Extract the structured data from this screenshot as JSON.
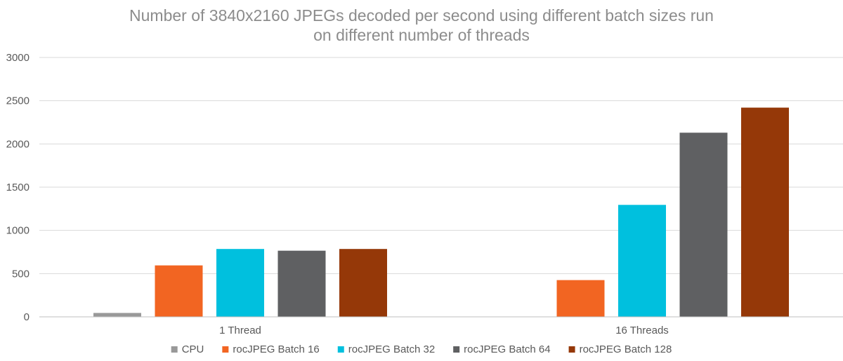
{
  "chart_data": {
    "type": "bar",
    "title_lines": [
      "Number of 3840x2160 JPEGs decoded per second using different batch sizes run",
      "on different number of threads"
    ],
    "xlabel": "",
    "ylabel": "",
    "categories": [
      "1 Thread",
      "16 Threads"
    ],
    "ylim": [
      0,
      3000
    ],
    "yticks": [
      0,
      500,
      1000,
      1500,
      2000,
      2500,
      3000
    ],
    "grid": true,
    "legend_position": "bottom",
    "series": [
      {
        "name": "CPU",
        "color": "#999999",
        "values": [
          45,
          null
        ]
      },
      {
        "name": "rocJPEG Batch 16",
        "color": "#f26522",
        "values": [
          595,
          425
        ]
      },
      {
        "name": "rocJPEG Batch 32",
        "color": "#00c0de",
        "values": [
          785,
          1295
        ]
      },
      {
        "name": "rocJPEG Batch 64",
        "color": "#5f6062",
        "values": [
          765,
          2130
        ]
      },
      {
        "name": "rocJPEG Batch 128",
        "color": "#953808",
        "values": [
          785,
          2420
        ]
      }
    ]
  }
}
